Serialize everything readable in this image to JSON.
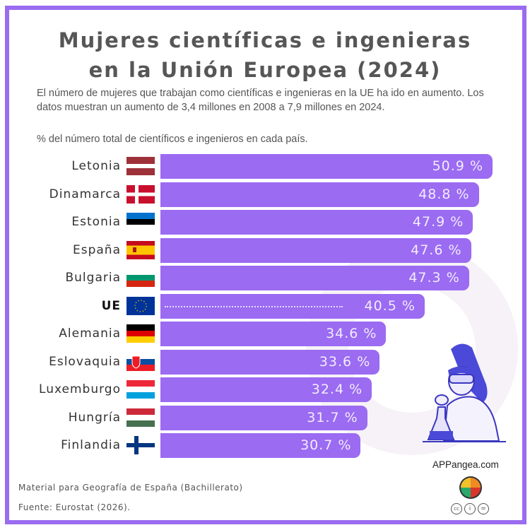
{
  "title_line1": "Mujeres científicas e ingenieras",
  "title_line2": "en la Unión Europea (2024)",
  "description": "El número de mujeres que trabajan como científicas e ingenieras en la UE ha ido en aumento. Los datos muestran un aumento de 3,4 millones en 2008 a  7,9 millones en 2024.",
  "unit_note": "% del número total de científicos e ingenieros en cada país.",
  "chart_data": {
    "type": "bar",
    "orientation": "horizontal",
    "categories": [
      "Letonia",
      "Dinamarca",
      "Estonia",
      "España",
      "Bulgaria",
      "UE",
      "Alemania",
      "Eslovaquia",
      "Luxemburgo",
      "Hungría",
      "Finlandia"
    ],
    "values": [
      50.9,
      48.8,
      47.9,
      47.6,
      47.3,
      40.5,
      34.6,
      33.6,
      32.4,
      31.7,
      30.7
    ],
    "value_labels": [
      "50.9 %",
      "48.8 %",
      "47.9 %",
      "47.6 %",
      "47.3 %",
      "40.5 %",
      "34.6 %",
      "33.6 %",
      "32.4 %",
      "31.7 %",
      "30.7 %"
    ],
    "highlight": "UE",
    "bar_color": "#9b6bf2",
    "xlim": [
      0,
      50.9
    ],
    "grid": false
  },
  "footer": {
    "material": "Material para Geografía de España (Bachillerato)",
    "source": "Fuente: Eurostat (2026).",
    "brand": "APPangea.com",
    "license_icons": [
      "cc-icon",
      "by-icon",
      "nd-icon"
    ]
  },
  "colors": {
    "frame": "#9a6cf0",
    "bar": "#9b6bf2",
    "title": "#565656"
  }
}
